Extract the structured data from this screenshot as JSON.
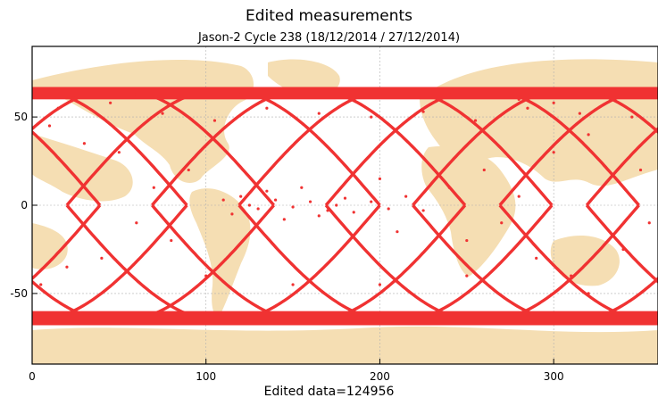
{
  "chart_data": {
    "type": "scatter",
    "title": "Edited measurements",
    "subtitle": "Jason-2  Cycle 238 (18/12/2014 / 27/12/2014)",
    "xlabel": "Edited data=124956",
    "ylabel": "",
    "xlim": [
      0,
      360
    ],
    "ylim": [
      -90,
      90
    ],
    "x_ticks": [
      0,
      100,
      200,
      300
    ],
    "y_ticks": [
      -50,
      0,
      50
    ],
    "grid": true,
    "colors": {
      "points": "#f03232",
      "land": "#f5deb3",
      "ocean": "#ffffff",
      "grid": "#b0b0b0"
    },
    "background": "world map (land masses)",
    "series": [
      {
        "description": "edited altimetry measurements along satellite ground tracks",
        "inclination_limit_deg": 66,
        "track_ascending_equator_crossings_deg": [
          20,
          69,
          119,
          169,
          219,
          269,
          319
        ],
        "band_latitude_ranges": [
          [
            -68,
            -60
          ],
          [
            60,
            67
          ]
        ],
        "scattered_points": [
          [
            125,
            0
          ],
          [
            130,
            -2
          ],
          [
            140,
            3
          ],
          [
            150,
            -1
          ],
          [
            160,
            2
          ],
          [
            170,
            -3
          ],
          [
            135,
            8
          ],
          [
            145,
            -8
          ],
          [
            155,
            10
          ],
          [
            165,
            -6
          ],
          [
            120,
            5
          ],
          [
            110,
            3
          ],
          [
            115,
            -5
          ],
          [
            175,
            0
          ],
          [
            180,
            4
          ],
          [
            185,
            -4
          ],
          [
            195,
            2
          ],
          [
            205,
            -2
          ],
          [
            215,
            5
          ],
          [
            225,
            -3
          ],
          [
            200,
            15
          ],
          [
            210,
            -15
          ],
          [
            240,
            10
          ],
          [
            250,
            -20
          ],
          [
            260,
            20
          ],
          [
            270,
            -10
          ],
          [
            280,
            5
          ],
          [
            290,
            -30
          ],
          [
            300,
            30
          ],
          [
            310,
            -40
          ],
          [
            320,
            40
          ],
          [
            60,
            -10
          ],
          [
            70,
            10
          ],
          [
            80,
            -20
          ],
          [
            90,
            20
          ],
          [
            50,
            30
          ],
          [
            40,
            -30
          ],
          [
            30,
            35
          ],
          [
            20,
            -35
          ],
          [
            10,
            45
          ],
          [
            5,
            -45
          ],
          [
            100,
            -40
          ],
          [
            150,
            -45
          ],
          [
            200,
            -45
          ],
          [
            250,
            -40
          ],
          [
            320,
            -50
          ],
          [
            340,
            -25
          ],
          [
            350,
            20
          ],
          [
            355,
            -10
          ],
          [
            15,
            55
          ],
          [
            45,
            58
          ],
          [
            75,
            52
          ],
          [
            105,
            48
          ],
          [
            135,
            55
          ],
          [
            165,
            52
          ],
          [
            195,
            50
          ],
          [
            225,
            53
          ],
          [
            255,
            48
          ],
          [
            285,
            55
          ],
          [
            315,
            52
          ],
          [
            345,
            50
          ],
          [
            25,
            62
          ],
          [
            185,
            62
          ],
          [
            280,
            60
          ],
          [
            330,
            63
          ],
          [
            60,
            63
          ],
          [
            120,
            63
          ],
          [
            240,
            63
          ],
          [
            290,
            62
          ],
          [
            300,
            58
          ]
        ]
      }
    ]
  }
}
